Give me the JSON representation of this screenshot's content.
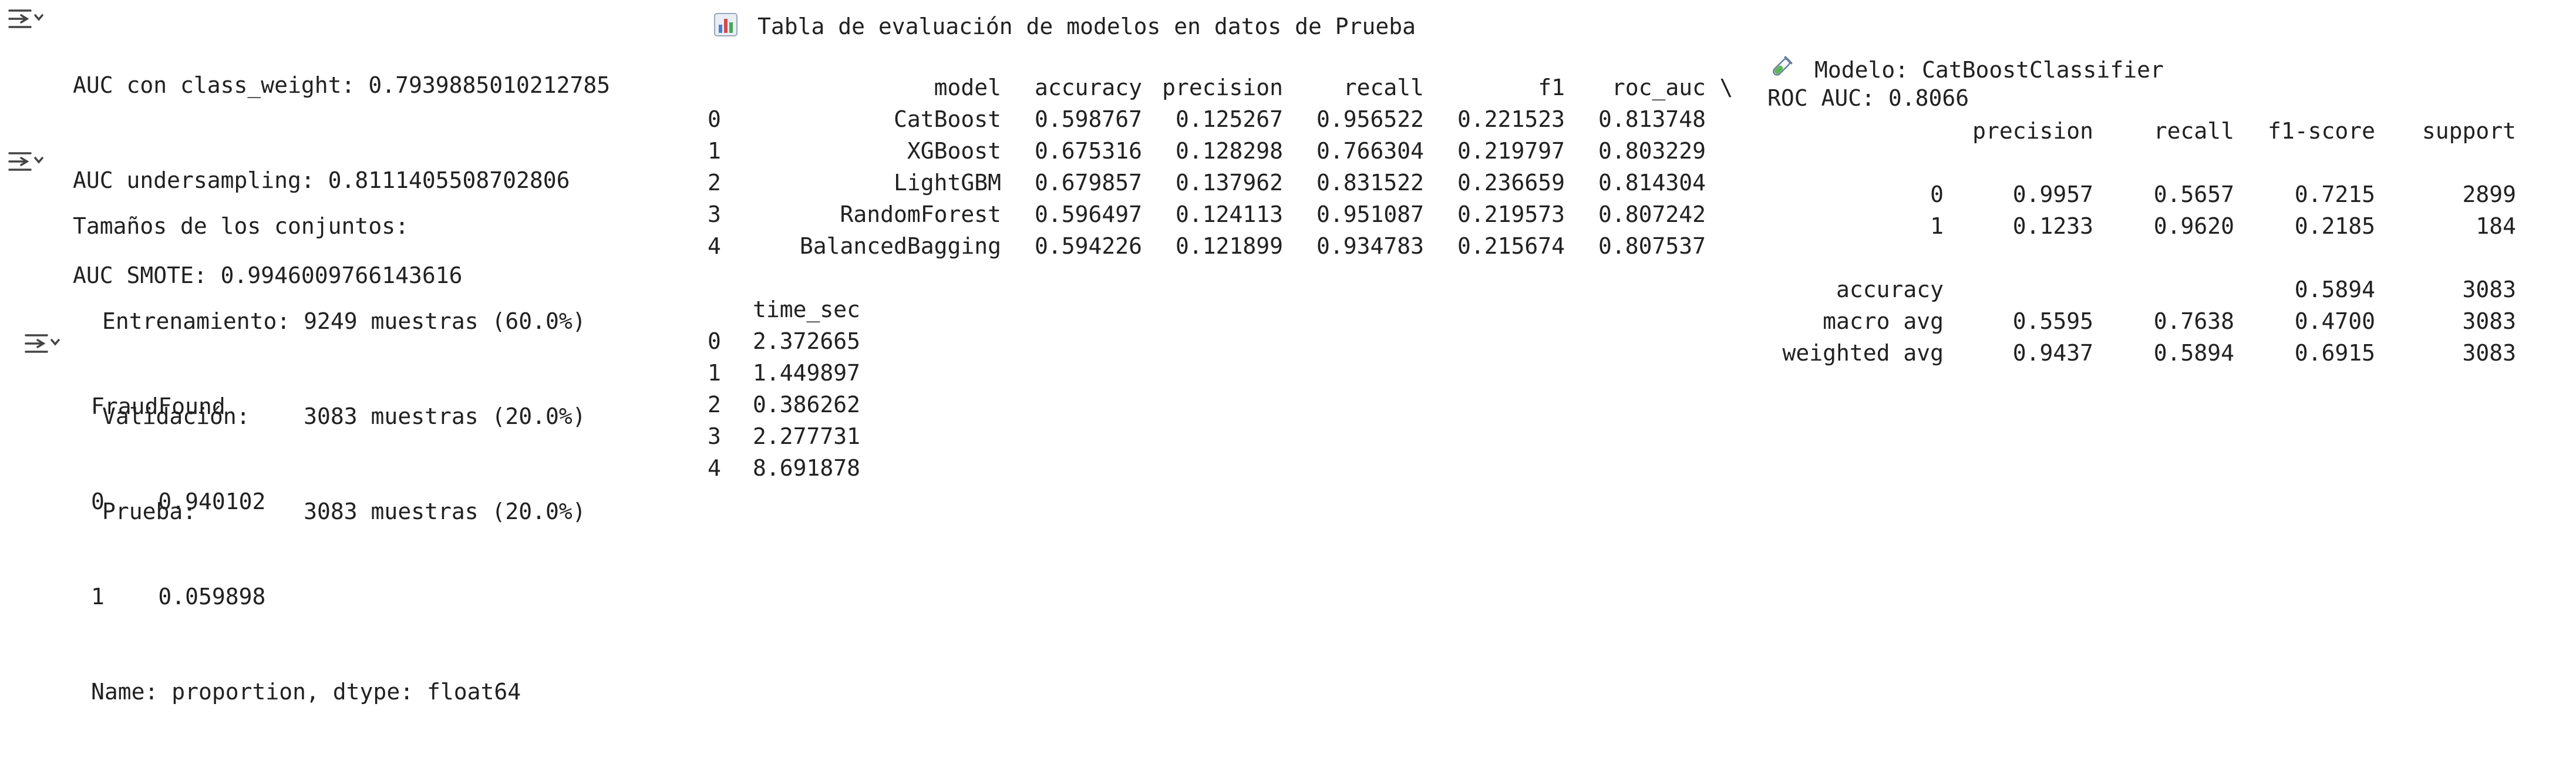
{
  "cell1": {
    "lines": [
      "AUC con class_weight: 0.7939885010212785",
      "AUC undersampling: 0.8111405508702806",
      "AUC SMOTE: 0.9946009766143616"
    ]
  },
  "cell2": {
    "title": "Tamaños de los conjuntos:",
    "lines": [
      "Entrenamiento: 9249 muestras (60.0%)",
      "Validación:    3083 muestras (20.0%)",
      "Prueba:        3083 muestras (20.0%)"
    ]
  },
  "cell3": {
    "title": "FraudFound",
    "lines": [
      "0    0.940102",
      "1    0.059898",
      "Name: proportion, dtype: float64"
    ]
  },
  "models": {
    "title": "Tabla de evaluación de modelos en datos de Prueba",
    "columns": [
      "model",
      "accuracy",
      "precision",
      "recall",
      "f1",
      "roc_auc",
      "\\"
    ],
    "rows": [
      [
        "0",
        "CatBoost",
        "0.598767",
        "0.125267",
        "0.956522",
        "0.221523",
        "0.813748"
      ],
      [
        "1",
        "XGBoost",
        "0.675316",
        "0.128298",
        "0.766304",
        "0.219797",
        "0.803229"
      ],
      [
        "2",
        "LightGBM",
        "0.679857",
        "0.137962",
        "0.831522",
        "0.236659",
        "0.814304"
      ],
      [
        "3",
        "RandomForest",
        "0.596497",
        "0.124113",
        "0.951087",
        "0.219573",
        "0.807242"
      ],
      [
        "4",
        "BalancedBagging",
        "0.594226",
        "0.121899",
        "0.934783",
        "0.215674",
        "0.807537"
      ]
    ],
    "time_header": "time_sec",
    "time_rows": [
      [
        "0",
        "2.372665"
      ],
      [
        "1",
        "1.449897"
      ],
      [
        "2",
        "0.386262"
      ],
      [
        "3",
        "2.277731"
      ],
      [
        "4",
        "8.691878"
      ]
    ]
  },
  "report": {
    "title": "Modelo: CatBoostClassifier",
    "roc": "ROC AUC: 0.8066",
    "columns": [
      "precision",
      "recall",
      "f1-score",
      "support"
    ],
    "rows": [
      [
        "0",
        "0.9957",
        "0.5657",
        "0.7215",
        "2899"
      ],
      [
        "1",
        "0.1233",
        "0.9620",
        "0.2185",
        "184"
      ]
    ],
    "summary": [
      [
        "accuracy",
        "",
        "",
        "0.5894",
        "3083"
      ],
      [
        "macro avg",
        "0.5595",
        "0.7638",
        "0.4700",
        "3083"
      ],
      [
        "weighted avg",
        "0.9437",
        "0.5894",
        "0.6915",
        "3083"
      ]
    ]
  }
}
